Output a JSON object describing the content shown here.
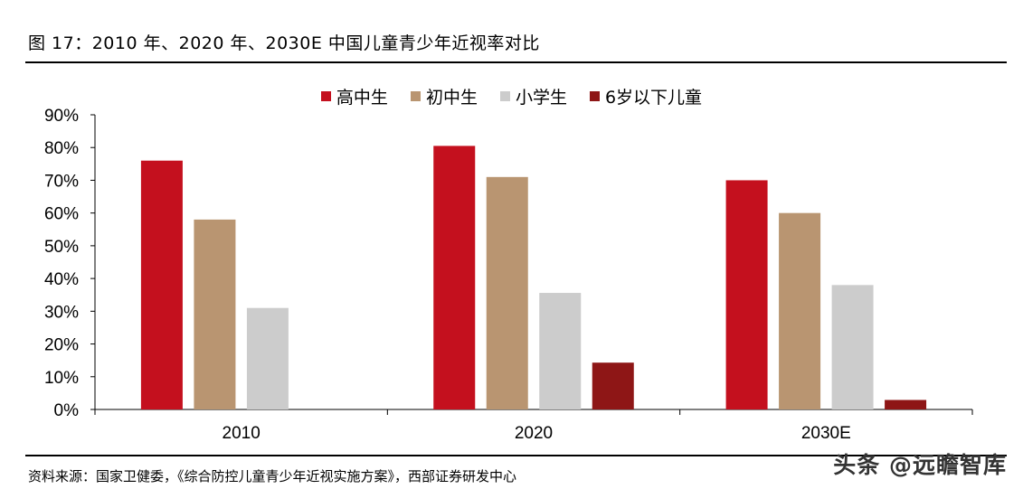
{
  "title": "图 17：2010 年、2020 年、2030E 中国儿童青少年近视率对比",
  "source": "资料来源：国家卫健委，《综合防控儿童青少年近视实施方案》，西部证券研发中心",
  "watermark": "头条 @远瞻智库",
  "colors": {
    "高中生": "#C4101E",
    "初中生": "#B99571",
    "小学生": "#CCCCCC",
    "6岁以下儿童": "#8E1616"
  },
  "chart_data": {
    "type": "bar",
    "categories": [
      "2010",
      "2020",
      "2030E"
    ],
    "series": [
      {
        "name": "高中生",
        "values": [
          76,
          80.5,
          70
        ]
      },
      {
        "name": "初中生",
        "values": [
          58,
          71,
          60
        ]
      },
      {
        "name": "小学生",
        "values": [
          31,
          35.6,
          38
        ]
      },
      {
        "name": "6岁以下儿童",
        "values": [
          null,
          14.3,
          2.9
        ]
      }
    ],
    "ylim": [
      0,
      90
    ],
    "yticks": [
      "0%",
      "10%",
      "20%",
      "30%",
      "40%",
      "50%",
      "60%",
      "70%",
      "80%",
      "90%"
    ],
    "legend_position": "top-center",
    "grid": false
  }
}
